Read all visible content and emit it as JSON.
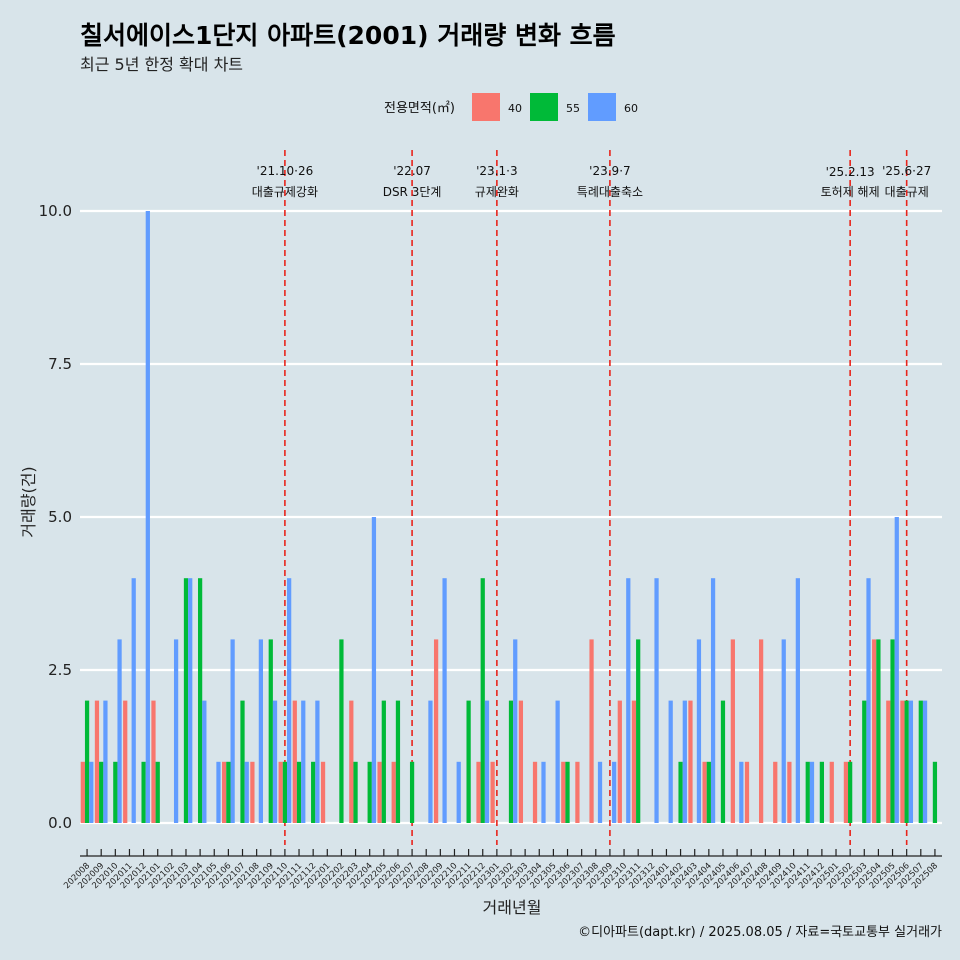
{
  "header": {
    "title": "칠서에이스1단지 아파트(2001) 거래량 변화 흐름",
    "subtitle": "최근 5년 한정 확대 차트"
  },
  "caption": "©디아파트(dapt.kr) / 2025.08.05 / 자료=국토교통부 실거래가",
  "chart_data": {
    "type": "bar",
    "xlabel": "거래년월",
    "ylabel": "거래량(건)",
    "ylim": [
      0,
      10.8
    ],
    "yticks": [
      "0.0",
      "2.5",
      "5.0",
      "7.5",
      "10.0"
    ],
    "ytick_values": [
      0,
      2.5,
      5,
      7.5,
      10
    ],
    "grid": "horizontal",
    "legend": {
      "title": "전용면적(㎡)",
      "placement": "top",
      "items": [
        {
          "label": "40",
          "color": "#f8766d"
        },
        {
          "label": "55",
          "color": "#00ba38"
        },
        {
          "label": "60",
          "color": "#619cff"
        }
      ]
    },
    "categories": [
      "202008",
      "202009",
      "202010",
      "202011",
      "202012",
      "202101",
      "202102",
      "202103",
      "202104",
      "202105",
      "202106",
      "202107",
      "202108",
      "202109",
      "202110",
      "202111",
      "202112",
      "202201",
      "202202",
      "202203",
      "202204",
      "202205",
      "202206",
      "202207",
      "202208",
      "202209",
      "202210",
      "202211",
      "202212",
      "202301",
      "202302",
      "202303",
      "202304",
      "202305",
      "202306",
      "202307",
      "202308",
      "202309",
      "202310",
      "202311",
      "202312",
      "202401",
      "202402",
      "202403",
      "202404",
      "202405",
      "202406",
      "202407",
      "202408",
      "202409",
      "202410",
      "202411",
      "202412",
      "202501",
      "202502",
      "202503",
      "202504",
      "202505",
      "202506",
      "202507",
      "202508"
    ],
    "series": [
      {
        "name": "40",
        "color": "#f8766d",
        "values": [
          1,
          2,
          0,
          2,
          0,
          2,
          0,
          0,
          0,
          0,
          1,
          0,
          1,
          0,
          1,
          2,
          0,
          1,
          0,
          2,
          0,
          1,
          1,
          0,
          0,
          3,
          0,
          0,
          1,
          1,
          0,
          2,
          1,
          0,
          1,
          1,
          3,
          0,
          2,
          2,
          0,
          0,
          0,
          2,
          1,
          0,
          3,
          1,
          3,
          1,
          1,
          0,
          0,
          1,
          1,
          0,
          3,
          2,
          2,
          0,
          0
        ]
      },
      {
        "name": "55",
        "color": "#00ba38",
        "values": [
          2,
          1,
          1,
          0,
          1,
          1,
          0,
          4,
          4,
          0,
          1,
          2,
          0,
          3,
          1,
          1,
          1,
          0,
          3,
          1,
          1,
          2,
          2,
          1,
          0,
          0,
          0,
          2,
          4,
          0,
          2,
          0,
          0,
          0,
          1,
          0,
          0,
          0,
          0,
          3,
          0,
          0,
          1,
          0,
          1,
          2,
          0,
          0,
          0,
          0,
          0,
          1,
          1,
          0,
          1,
          2,
          3,
          3,
          2,
          2,
          1
        ]
      },
      {
        "name": "60",
        "color": "#619cff",
        "values": [
          1,
          2,
          3,
          4,
          10,
          0,
          3,
          4,
          2,
          1,
          3,
          1,
          3,
          2,
          4,
          2,
          2,
          0,
          0,
          0,
          5,
          0,
          0,
          0,
          2,
          4,
          1,
          0,
          2,
          0,
          3,
          0,
          1,
          2,
          0,
          0,
          1,
          1,
          4,
          0,
          4,
          2,
          2,
          3,
          4,
          0,
          1,
          0,
          0,
          3,
          4,
          1,
          0,
          0,
          0,
          4,
          0,
          5,
          2,
          2,
          0
        ]
      }
    ],
    "events": [
      {
        "date": "'21.10·26",
        "label": "대출규제강화",
        "month": "202110"
      },
      {
        "date": "'22.07",
        "label": "DSR 3단계",
        "month": "202207"
      },
      {
        "date": "'23.1·3",
        "label": "규제완화",
        "month": "202301"
      },
      {
        "date": "'23.9·7",
        "label": "특례대출축소",
        "month": "202309"
      },
      {
        "date": "'25.2.13",
        "label": "토허제 해제",
        "month": "202502"
      },
      {
        "date": "'25.6·27",
        "label": "대출규제",
        "month": "202506"
      }
    ]
  }
}
